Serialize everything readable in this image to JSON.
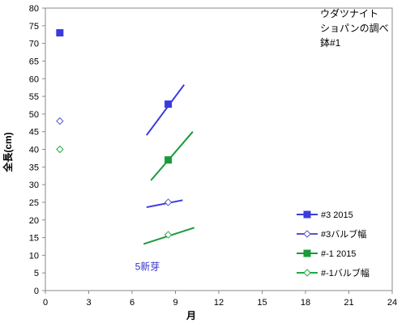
{
  "chart_data": {
    "type": "scatter",
    "xlabel": "月",
    "ylabel": "全長(cm)",
    "xlim": [
      0,
      24
    ],
    "ylim": [
      0,
      80
    ],
    "xticks": [
      0,
      3,
      6,
      9,
      12,
      15,
      18,
      21,
      24
    ],
    "yticks": [
      0,
      5,
      10,
      15,
      20,
      25,
      30,
      35,
      40,
      45,
      50,
      55,
      60,
      65,
      70,
      75,
      80
    ],
    "grid": false,
    "legend_position": "bottom-right",
    "title_lines": [
      "ウダツナイト",
      "ショパンの調べ",
      "鉢#1"
    ],
    "annotations": [
      {
        "text": "5新芽",
        "x": 6.2,
        "y": 5.8,
        "color": "#3333cc"
      }
    ],
    "series": [
      {
        "name": "#3 2015",
        "marker": "square",
        "filled": true,
        "color": "#3b3bdc",
        "points": [
          [
            1,
            73
          ],
          [
            8.5,
            52.8
          ]
        ]
      },
      {
        "name": "#3バルブ幅",
        "marker": "diamond",
        "filled": false,
        "color": "#5555cc",
        "points": [
          [
            1,
            48
          ],
          [
            8.5,
            25
          ]
        ]
      },
      {
        "name": "#-1 2015",
        "marker": "square",
        "filled": true,
        "color": "#1a9a3a",
        "points": [
          [
            8.5,
            37
          ]
        ]
      },
      {
        "name": "#-1バルブ幅",
        "marker": "diamond",
        "filled": false,
        "color": "#22aa44",
        "points": [
          [
            1,
            40
          ],
          [
            8.5,
            15.8
          ]
        ]
      }
    ],
    "trend_lines": [
      {
        "color": "#3b3bdc",
        "from": [
          7,
          44
        ],
        "to": [
          9.6,
          58.3
        ]
      },
      {
        "color": "#3b3bdc",
        "from": [
          7,
          23.6
        ],
        "to": [
          9.5,
          25.6
        ]
      },
      {
        "color": "#1a9a3a",
        "from": [
          7.3,
          31.2
        ],
        "to": [
          10.2,
          45
        ]
      },
      {
        "color": "#1a9a3a",
        "from": [
          6.8,
          13.2
        ],
        "to": [
          10.3,
          17.8
        ]
      }
    ]
  }
}
